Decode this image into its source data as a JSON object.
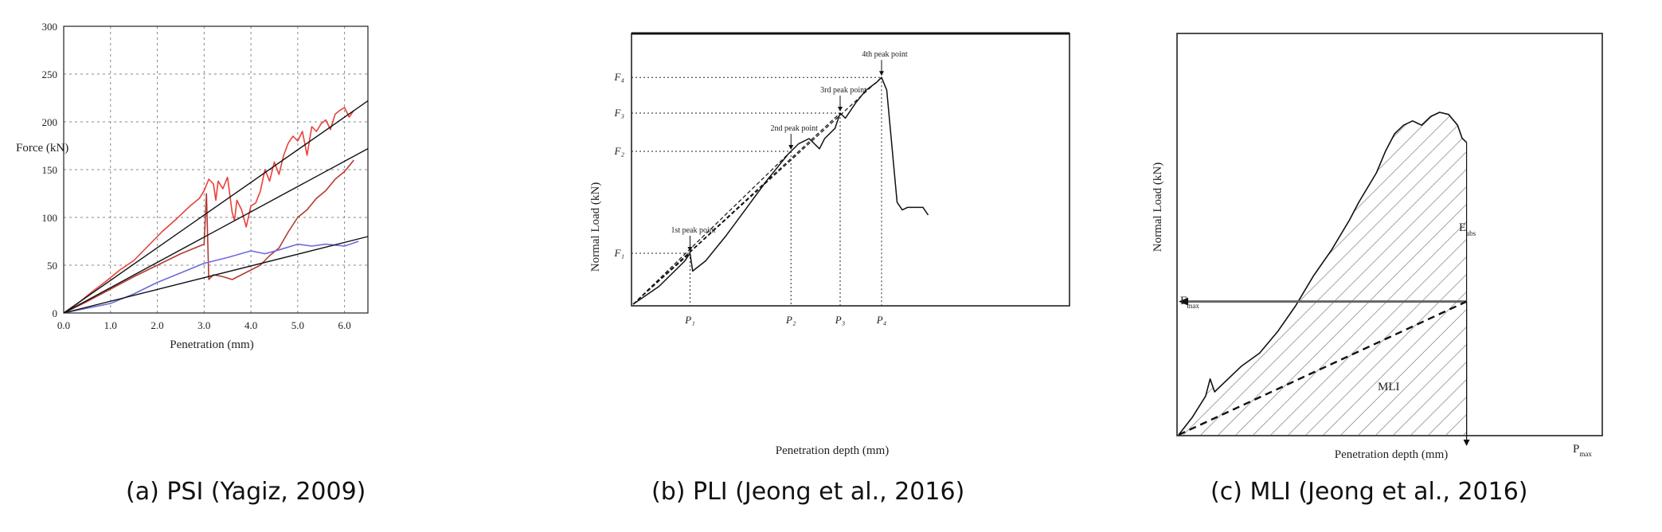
{
  "captions": [
    "(a) PSI (Yagiz, 2009)",
    "(b) PLI (Jeong et al., 2016)",
    "(c) MLI (Jeong et al., 2016)"
  ],
  "colors": {
    "red": "#e8413a",
    "darkred": "#b43a32",
    "blue": "#6c6cd8",
    "black": "#111111",
    "grid": "#888888"
  },
  "chart_data": [
    {
      "type": "line",
      "xlabel": "Penetration (mm)",
      "ylabel": "Force (kN)",
      "xlim": [
        0,
        6.5
      ],
      "ylim": [
        0,
        300
      ],
      "xticks": [
        "0.0",
        "1.0",
        "2.0",
        "3.0",
        "4.0",
        "5.0",
        "6.0"
      ],
      "yticks": [
        "0",
        "50",
        "100",
        "150",
        "200",
        "250",
        "300"
      ],
      "grid": true,
      "series": [
        {
          "color": "red",
          "x": [
            0,
            0.3,
            0.6,
            0.9,
            1.2,
            1.5,
            1.8,
            2.1,
            2.4,
            2.7,
            2.9,
            3.0,
            3.1,
            3.2,
            3.25,
            3.3,
            3.4,
            3.5,
            3.6,
            3.65,
            3.7,
            3.8,
            3.9,
            4.0,
            4.1,
            4.2,
            4.3,
            4.4,
            4.5,
            4.6,
            4.7,
            4.8,
            4.9,
            5.0,
            5.1,
            5.2,
            5.3,
            5.4,
            5.5,
            5.6,
            5.7,
            5.8,
            5.9,
            6.0,
            6.1,
            6.2
          ],
          "y": [
            0,
            10,
            22,
            33,
            45,
            55,
            70,
            85,
            98,
            112,
            120,
            128,
            140,
            135,
            118,
            138,
            130,
            142,
            105,
            97,
            118,
            108,
            90,
            112,
            115,
            127,
            150,
            138,
            158,
            145,
            165,
            178,
            185,
            180,
            190,
            165,
            195,
            190,
            198,
            202,
            192,
            208,
            212,
            215,
            205,
            212
          ]
        },
        {
          "color": "darkred",
          "x": [
            0,
            0.5,
            1.0,
            1.5,
            2.0,
            2.5,
            3.0,
            3.05,
            3.1,
            3.2,
            3.4,
            3.6,
            3.8,
            4.0,
            4.2,
            4.4,
            4.6,
            4.8,
            5.0,
            5.2,
            5.4,
            5.6,
            5.8,
            6.0,
            6.2
          ],
          "y": [
            0,
            12,
            25,
            38,
            50,
            62,
            72,
            125,
            35,
            40,
            38,
            35,
            40,
            45,
            50,
            60,
            68,
            85,
            100,
            108,
            120,
            128,
            140,
            148,
            160
          ]
        },
        {
          "color": "blue",
          "x": [
            0,
            0.5,
            1.0,
            1.5,
            2.0,
            2.5,
            3.0,
            3.5,
            4.0,
            4.3,
            4.6,
            5.0,
            5.3,
            5.6,
            6.0,
            6.3
          ],
          "y": [
            0,
            5,
            10,
            20,
            32,
            42,
            52,
            58,
            65,
            62,
            66,
            72,
            70,
            72,
            70,
            75
          ]
        },
        {
          "color": "black",
          "name": "",
          "x": [
            0,
            6.5
          ],
          "y": [
            0,
            222
          ]
        },
        {
          "color": "black",
          "x": [
            0,
            6.5
          ],
          "y": [
            0,
            172
          ]
        },
        {
          "color": "black",
          "x": [
            0,
            6.5
          ],
          "y": [
            0,
            80
          ]
        }
      ]
    },
    {
      "type": "line",
      "xlabel": "Penetration depth (mm)",
      "ylabel": "Normal Load (kN)",
      "xticks": [
        "P₁",
        "P₂",
        "P₃",
        "P₄"
      ],
      "yticks": [
        "F₁",
        "F₂",
        "F₃",
        "F₄"
      ],
      "annotations": [
        "1st peak point",
        "2nd peak point",
        "3rd peak point",
        "4th peak point"
      ],
      "peaks": [
        [
          1.1,
          1.0
        ],
        [
          3.05,
          3.0
        ],
        [
          4.0,
          3.75
        ],
        [
          4.8,
          4.45
        ]
      ],
      "load_curve": {
        "x": [
          0,
          0.5,
          1.0,
          1.1,
          1.15,
          1.4,
          1.8,
          2.2,
          2.6,
          3.0,
          3.05,
          3.2,
          3.4,
          3.6,
          3.7,
          3.9,
          4.0,
          4.1,
          4.3,
          4.5,
          4.7,
          4.8,
          4.9,
          5.1,
          5.2,
          5.3,
          5.6,
          5.7
        ],
        "y": [
          0,
          0.35,
          0.85,
          1.0,
          0.65,
          0.85,
          1.35,
          1.9,
          2.45,
          2.95,
          3.0,
          3.15,
          3.25,
          3.05,
          3.25,
          3.45,
          3.75,
          3.65,
          3.95,
          4.2,
          4.35,
          4.45,
          4.2,
          2.0,
          1.85,
          1.9,
          1.9,
          1.75
        ]
      }
    },
    {
      "type": "line",
      "xlabel": "Penetration depth (mm)",
      "ylabel": "Normal Load (kN)",
      "labels": {
        "fmax": "F",
        "fmax_sub": "max",
        "pmax": "P",
        "pmax_sub": "max",
        "eabs": "E",
        "eabs_sub": "abs",
        "mli": "MLI"
      },
      "load_curve": {
        "x": [
          0,
          0.3,
          0.6,
          0.7,
          0.8,
          1.0,
          1.4,
          1.8,
          2.2,
          2.6,
          3.0,
          3.4,
          3.8,
          4.0,
          4.4,
          4.6,
          4.8,
          5.0,
          5.2,
          5.4,
          5.6,
          5.8,
          6.0,
          6.2,
          6.3,
          6.4
        ],
        "y": [
          0,
          0.4,
          0.9,
          1.3,
          1.0,
          1.2,
          1.6,
          1.9,
          2.4,
          3.0,
          3.7,
          4.3,
          5.0,
          5.4,
          6.1,
          6.6,
          7.0,
          7.2,
          7.3,
          7.2,
          7.4,
          7.5,
          7.45,
          7.2,
          6.9,
          6.8
        ]
      },
      "fmax": 3.1,
      "mli_line": {
        "x": [
          0,
          6.4
        ],
        "y": [
          0,
          3.1
        ]
      }
    }
  ]
}
